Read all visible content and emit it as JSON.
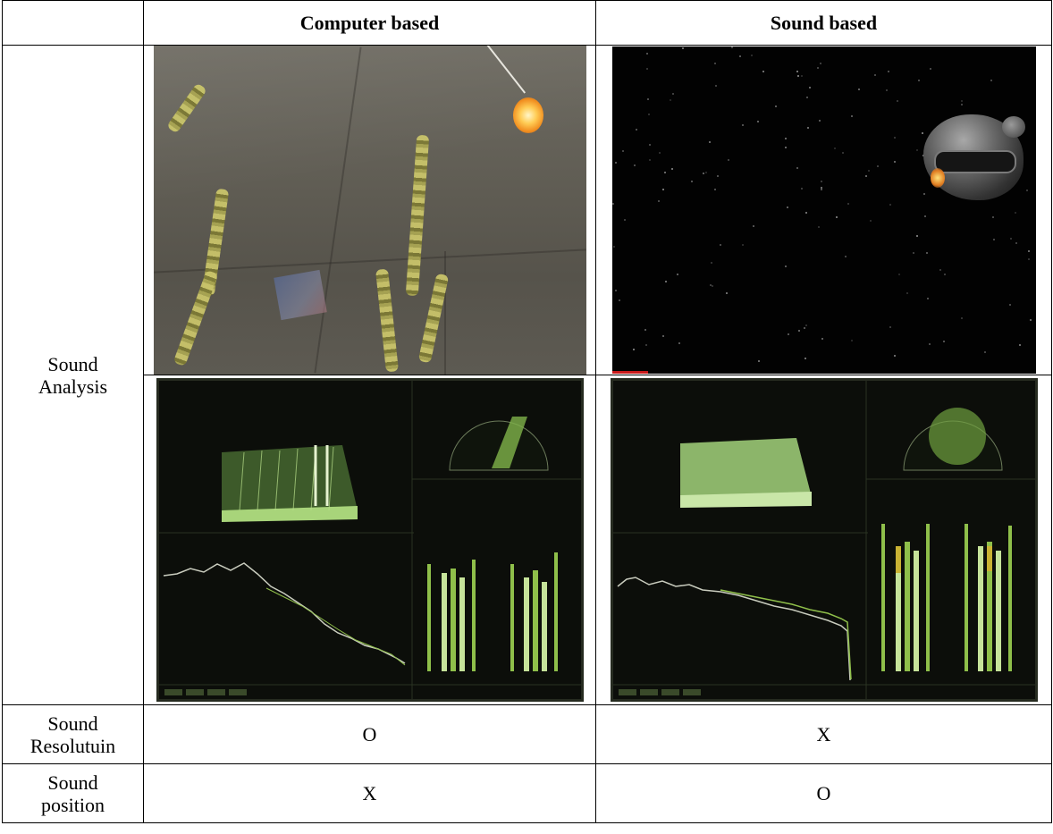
{
  "table": {
    "header": {
      "corner": "",
      "col1": "Computer based",
      "col2": "Sound based"
    },
    "rows": [
      {
        "label_line1": "Sound",
        "label_line2": "Analysis",
        "col1": "",
        "col2": ""
      },
      {
        "label_line1": "Sound",
        "label_line2": "Resolutuin",
        "col1": "O",
        "col2": "X"
      },
      {
        "label_line1": "Sound",
        "label_line2": "position",
        "col1": "X",
        "col2": "O"
      }
    ]
  },
  "images": {
    "computer_game": "game-scene-wall-vines",
    "sound_game": "game-scene-space-pod",
    "computer_analyzer": "spectrum-analyzer-dashboard",
    "sound_analyzer": "spectrum-analyzer-dashboard"
  },
  "colors": {
    "analyzer_green": "#8fbf4a",
    "analyzer_yellow": "#c9b233",
    "analyzer_bg": "#0c0e0a"
  }
}
